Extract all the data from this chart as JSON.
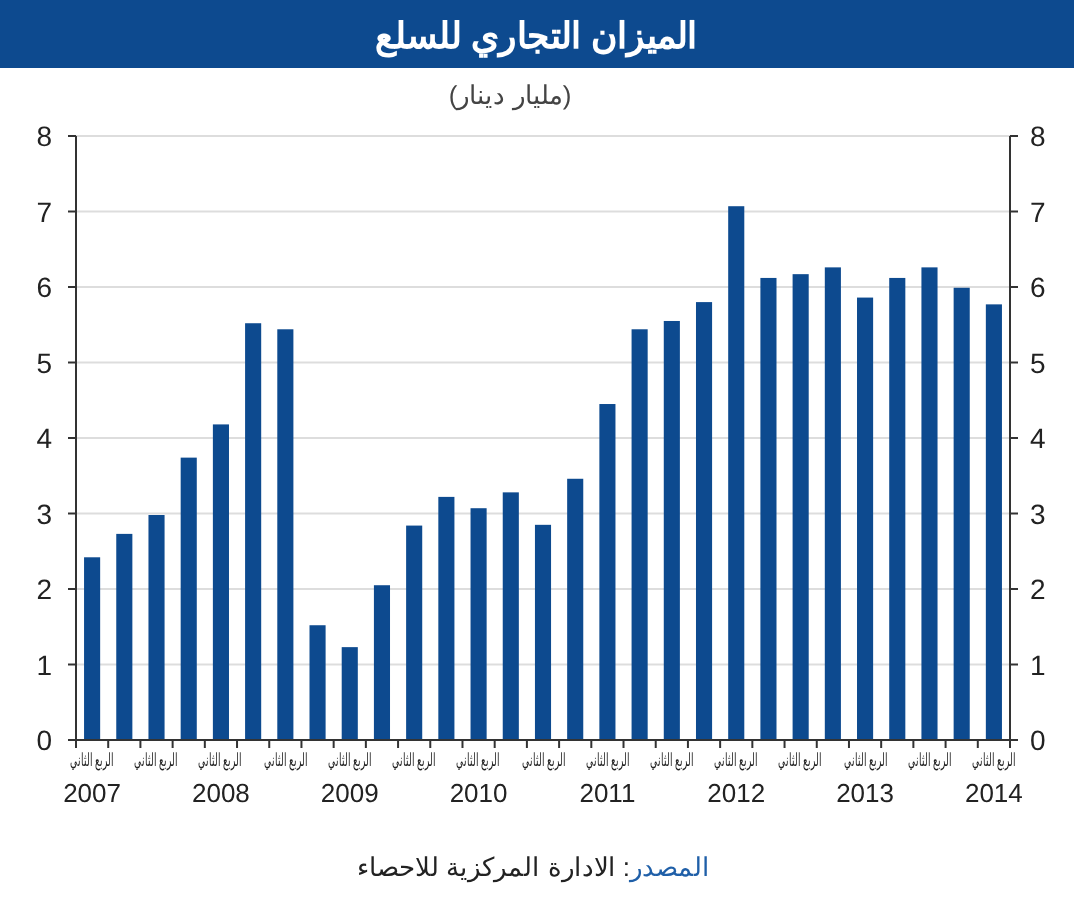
{
  "chart_data": {
    "type": "bar",
    "title": "الميزان التجاري للسلع",
    "subtitle": "(مليار دينار)",
    "categories": [
      "الربع الثاني\n2007",
      null,
      "الربع الثاني",
      null,
      "الربع الثاني\n2008",
      null,
      "الربع الثاني",
      null,
      "الربع الثاني\n2009",
      null,
      "الربع الثاني",
      null,
      "الربع الثاني\n2010",
      null,
      "الربع الثاني",
      null,
      "الربع الثاني\n2011",
      null,
      "الربع الثاني",
      null,
      "الربع الثاني\n2012",
      null,
      "الربع الثاني",
      null,
      "الربع الثاني\n2013",
      null,
      "الربع الثاني",
      null,
      "الربع الثاني\n2014"
    ],
    "values": [
      2.42,
      2.73,
      2.98,
      3.74,
      4.18,
      5.52,
      5.44,
      1.52,
      1.23,
      2.05,
      2.84,
      3.22,
      3.07,
      3.28,
      2.85,
      3.46,
      4.45,
      5.44,
      5.55,
      5.8,
      7.07,
      6.12,
      6.17,
      6.26,
      5.86,
      6.12,
      6.26,
      5.99,
      5.77
    ],
    "color": "#0d4a8f",
    "ylim": [
      0,
      8
    ],
    "yticks": [
      0,
      1,
      2,
      3,
      4,
      5,
      6,
      7,
      8
    ],
    "y2lim": [
      0,
      8
    ],
    "y2ticks": [
      0,
      1,
      2,
      3,
      4,
      5,
      6,
      7,
      8
    ],
    "grid": "y",
    "annotations": [
      "المصدر: الادارة المركزية للاحصاء"
    ]
  }
}
